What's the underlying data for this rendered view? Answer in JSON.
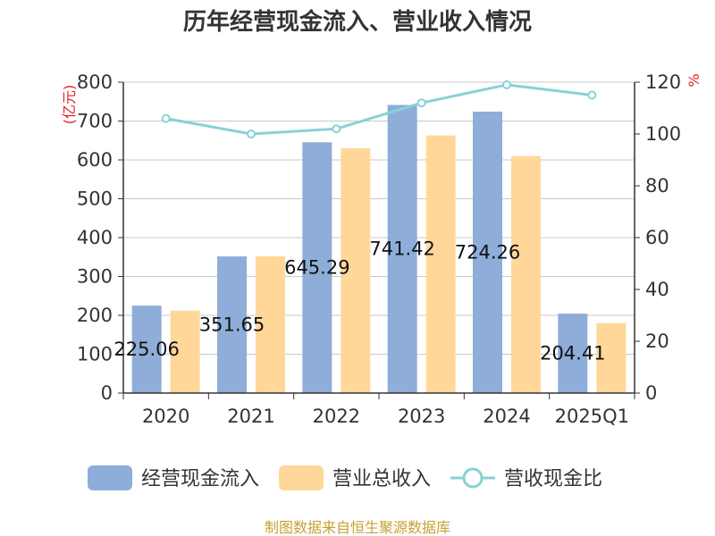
{
  "chart_data": {
    "type": "bar",
    "title": "历年经营现金流入、营业收入情况",
    "categories": [
      "2020",
      "2021",
      "2022",
      "2023",
      "2024",
      "2025Q1"
    ],
    "series": [
      {
        "name": "经营现金流入",
        "type": "bar",
        "axis": "left",
        "values": [
          225.06,
          351.65,
          645.29,
          741.42,
          724.26,
          204.41
        ],
        "color": "#8eadd9",
        "show_labels": true
      },
      {
        "name": "营业总收入",
        "type": "bar",
        "axis": "left",
        "values": [
          212,
          352,
          630,
          663,
          610,
          180
        ],
        "color": "#ffd899",
        "show_labels": false
      },
      {
        "name": "营收现金比",
        "type": "line",
        "axis": "right",
        "values": [
          106,
          100,
          102,
          112,
          119,
          115
        ],
        "color": "#88d1d6"
      }
    ],
    "y_left": {
      "label": "(亿元)",
      "ylim": [
        0,
        800
      ],
      "ticks": [
        0,
        100,
        200,
        300,
        400,
        500,
        600,
        700,
        800
      ]
    },
    "y_right": {
      "label": "%",
      "ylim": [
        0,
        120
      ],
      "ticks": [
        0,
        20,
        40,
        60,
        80,
        100,
        120
      ]
    },
    "grid": true,
    "legend_position": "bottom"
  },
  "source_text": "制图数据来自恒生聚源数据库"
}
